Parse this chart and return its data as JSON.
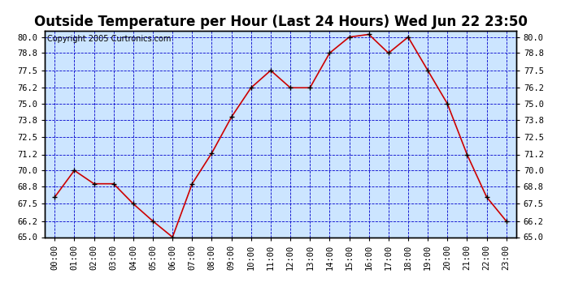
{
  "title": "Outside Temperature per Hour (Last 24 Hours) Wed Jun 22 23:50",
  "copyright": "Copyright 2005 Curtronics.com",
  "hours": [
    "00:00",
    "01:00",
    "02:00",
    "03:00",
    "04:00",
    "05:00",
    "06:00",
    "07:00",
    "08:00",
    "09:00",
    "10:00",
    "11:00",
    "12:00",
    "13:00",
    "14:00",
    "15:00",
    "16:00",
    "17:00",
    "18:00",
    "19:00",
    "20:00",
    "21:00",
    "22:00",
    "23:00"
  ],
  "temperatures": [
    68.0,
    70.0,
    69.0,
    69.0,
    67.5,
    66.2,
    65.0,
    69.0,
    71.3,
    74.0,
    76.2,
    77.5,
    76.2,
    76.2,
    78.8,
    80.0,
    80.2,
    78.8,
    80.0,
    77.5,
    75.0,
    71.2,
    68.0,
    66.2
  ],
  "ylim": [
    65.0,
    80.5
  ],
  "yticks": [
    65.0,
    66.2,
    67.5,
    68.8,
    70.0,
    71.2,
    72.5,
    73.8,
    75.0,
    76.2,
    77.5,
    78.8,
    80.0
  ],
  "line_color": "#cc0000",
  "marker_color": "#000000",
  "bg_color": "#cce5ff",
  "grid_color": "#0000cc",
  "title_fontsize": 12,
  "copyright_fontsize": 7,
  "tick_fontsize": 7.5
}
